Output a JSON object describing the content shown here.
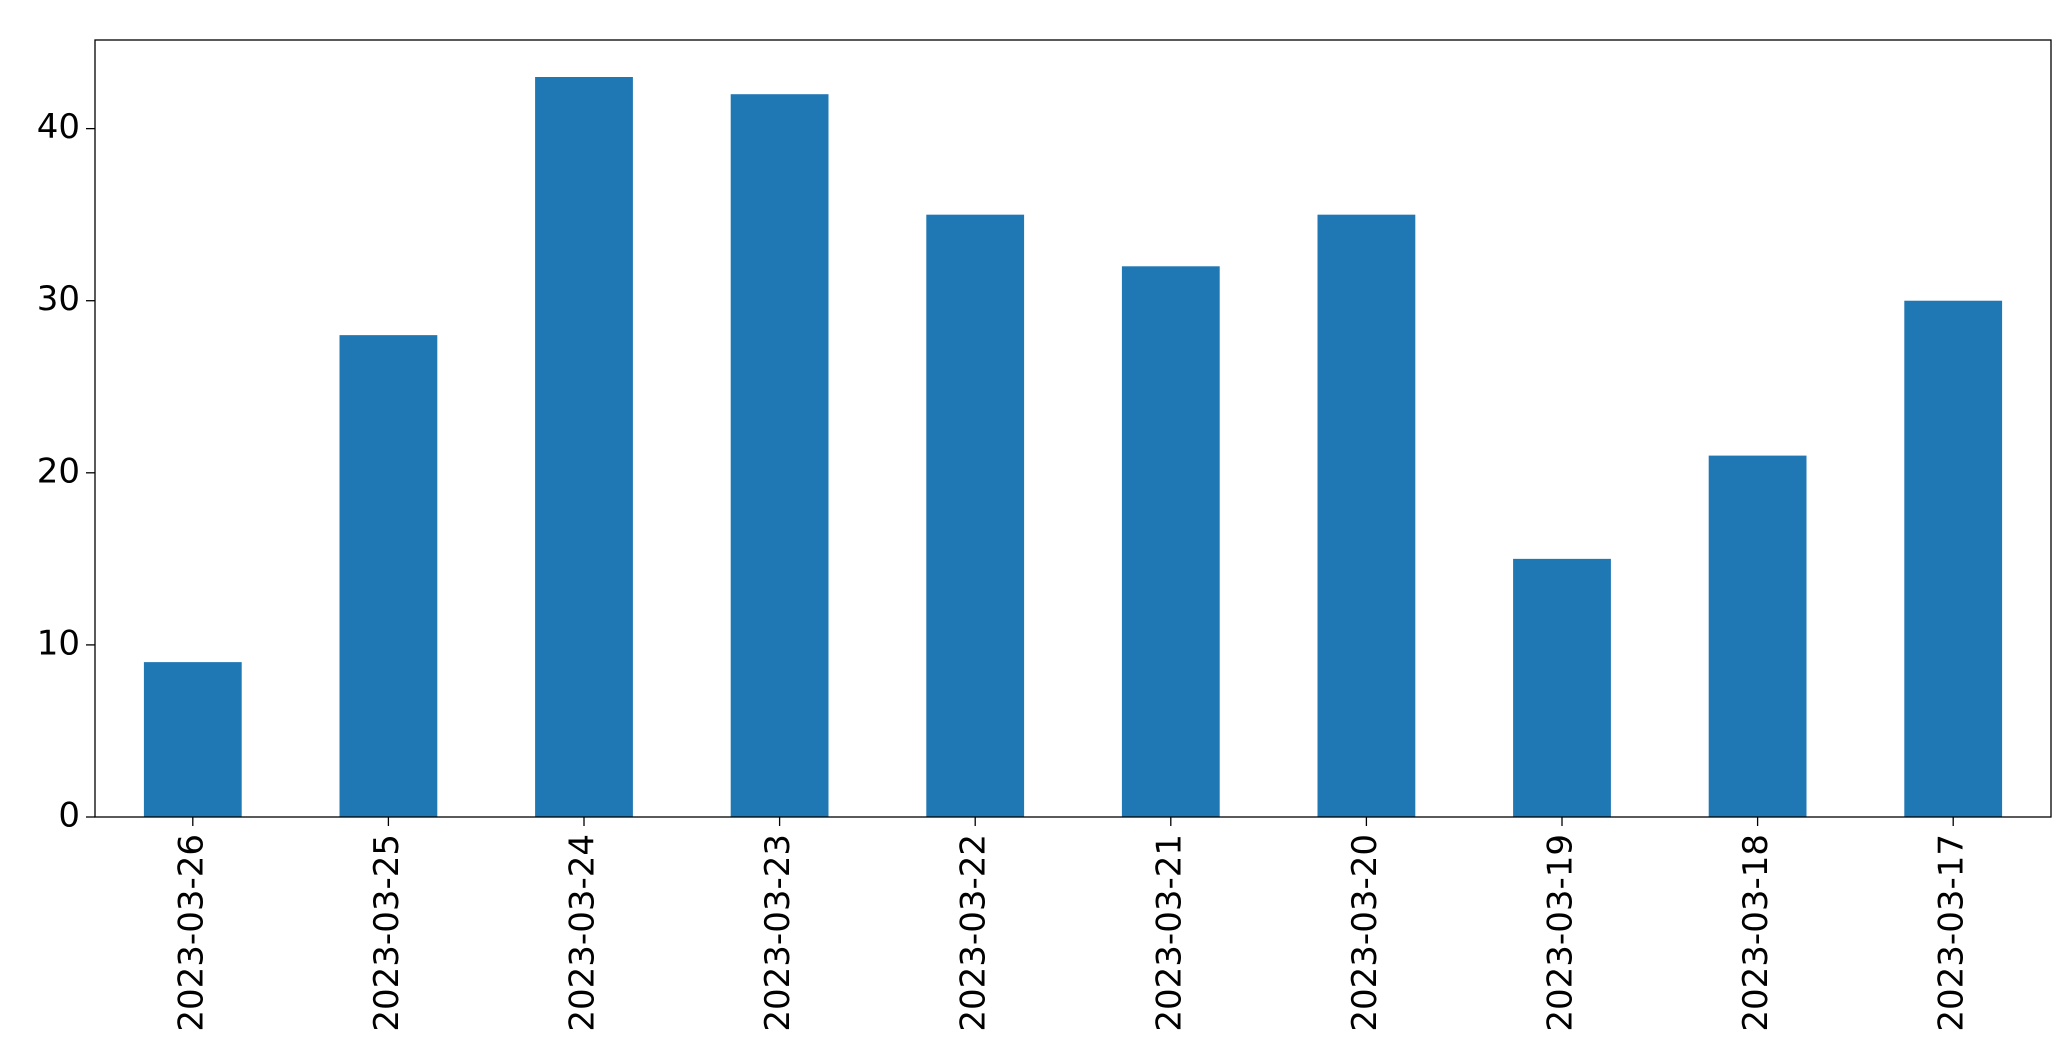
{
  "chart_data": {
    "type": "bar",
    "categories": [
      "2023-03-26",
      "2023-03-25",
      "2023-03-24",
      "2023-03-23",
      "2023-03-22",
      "2023-03-21",
      "2023-03-20",
      "2023-03-19",
      "2023-03-18",
      "2023-03-17"
    ],
    "values": [
      9,
      28,
      43,
      42,
      35,
      32,
      35,
      15,
      21,
      30
    ],
    "color": "#1f77b4",
    "ylim": [
      0,
      45.15
    ],
    "yticks": [
      0,
      10,
      20,
      30,
      40
    ],
    "grid": false
  }
}
